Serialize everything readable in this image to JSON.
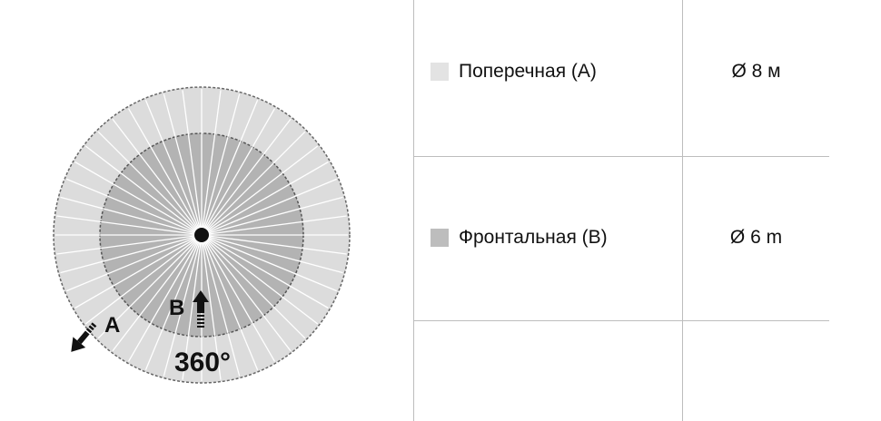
{
  "diagram": {
    "label_a": "A",
    "label_b": "B",
    "angle": "360°",
    "colors": {
      "outer_zone": "#dcdcdc",
      "inner_zone": "#b3b3b3",
      "center": "#111111"
    }
  },
  "table": {
    "rows": [
      {
        "label": "Поперечная (A)",
        "value": "Ø 8 м",
        "swatch_color": "#e3e3e3"
      },
      {
        "label": "Фронтальная (B)",
        "value": "Ø 6 m",
        "swatch_color": "#bdbdbd"
      }
    ]
  }
}
